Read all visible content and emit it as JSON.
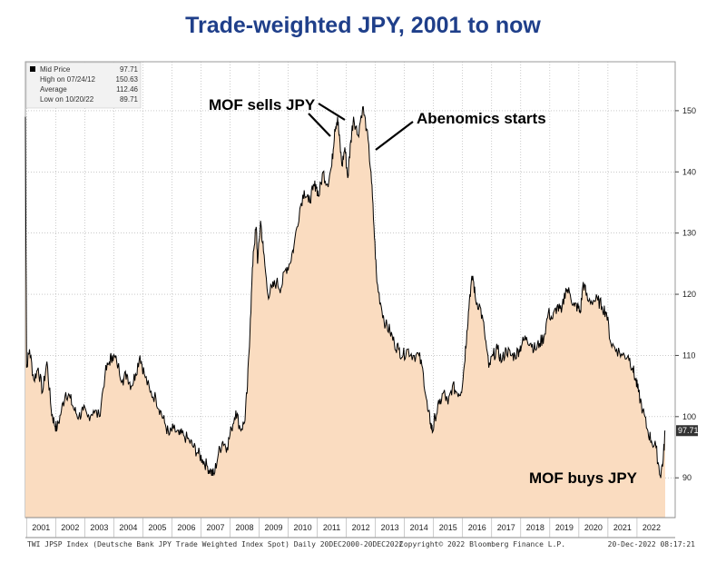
{
  "chart_data": {
    "type": "area",
    "title": "Trade-weighted JPY, 2001 to now",
    "xlabel": "",
    "ylabel": "",
    "x_range": [
      2000.96,
      2022.97
    ],
    "ylim": [
      83.5,
      158
    ],
    "y_ticks": [
      90,
      100,
      110,
      120,
      130,
      140,
      150
    ],
    "x_tick_labels": [
      "2001",
      "2002",
      "2003",
      "2004",
      "2005",
      "2006",
      "2007",
      "2008",
      "2009",
      "2010",
      "2011",
      "2012",
      "2013",
      "2014",
      "2015",
      "2016",
      "2017",
      "2018",
      "2019",
      "2020",
      "2021",
      "2022"
    ],
    "grid": true,
    "series": [
      {
        "name": "Mid Price",
        "points": [
          [
            2000.96,
            149
          ],
          [
            2001.0,
            108
          ],
          [
            2001.1,
            111
          ],
          [
            2001.25,
            106
          ],
          [
            2001.4,
            108
          ],
          [
            2001.55,
            104
          ],
          [
            2001.7,
            109
          ],
          [
            2001.85,
            101
          ],
          [
            2001.95,
            99
          ],
          [
            2002.05,
            98
          ],
          [
            2002.2,
            101
          ],
          [
            2002.35,
            104
          ],
          [
            2002.5,
            103
          ],
          [
            2002.65,
            101
          ],
          [
            2002.8,
            100
          ],
          [
            2002.95,
            101
          ],
          [
            2003.1,
            100
          ],
          [
            2003.3,
            101
          ],
          [
            2003.5,
            100
          ],
          [
            2003.7,
            107
          ],
          [
            2003.85,
            109
          ],
          [
            2003.95,
            110
          ],
          [
            2004.1,
            109
          ],
          [
            2004.3,
            106
          ],
          [
            2004.45,
            107
          ],
          [
            2004.6,
            105
          ],
          [
            2004.75,
            107
          ],
          [
            2004.9,
            110
          ],
          [
            2005.05,
            107
          ],
          [
            2005.25,
            104
          ],
          [
            2005.45,
            103
          ],
          [
            2005.6,
            101
          ],
          [
            2005.75,
            99
          ],
          [
            2005.9,
            97
          ],
          [
            2006.05,
            98
          ],
          [
            2006.25,
            97
          ],
          [
            2006.4,
            97
          ],
          [
            2006.6,
            96
          ],
          [
            2006.75,
            95
          ],
          [
            2006.9,
            94
          ],
          [
            2007.05,
            93
          ],
          [
            2007.2,
            92
          ],
          [
            2007.35,
            91
          ],
          [
            2007.45,
            90.5
          ],
          [
            2007.6,
            94
          ],
          [
            2007.75,
            96
          ],
          [
            2007.9,
            95
          ],
          [
            2008.05,
            98
          ],
          [
            2008.2,
            101
          ],
          [
            2008.35,
            98
          ],
          [
            2008.5,
            99
          ],
          [
            2008.6,
            105
          ],
          [
            2008.7,
            116
          ],
          [
            2008.8,
            127
          ],
          [
            2008.9,
            131
          ],
          [
            2008.95,
            125
          ],
          [
            2009.05,
            132
          ],
          [
            2009.15,
            127
          ],
          [
            2009.3,
            120
          ],
          [
            2009.45,
            121
          ],
          [
            2009.6,
            122
          ],
          [
            2009.75,
            121
          ],
          [
            2009.9,
            124
          ],
          [
            2010.05,
            125
          ],
          [
            2010.2,
            128
          ],
          [
            2010.4,
            134
          ],
          [
            2010.55,
            137
          ],
          [
            2010.7,
            135
          ],
          [
            2010.85,
            137
          ],
          [
            2010.95,
            138
          ],
          [
            2011.05,
            136
          ],
          [
            2011.2,
            140
          ],
          [
            2011.35,
            138
          ],
          [
            2011.5,
            141
          ],
          [
            2011.6,
            147
          ],
          [
            2011.7,
            149
          ],
          [
            2011.75,
            146
          ],
          [
            2011.85,
            141
          ],
          [
            2011.95,
            144
          ],
          [
            2012.05,
            139
          ],
          [
            2012.15,
            145
          ],
          [
            2012.25,
            149
          ],
          [
            2012.4,
            146
          ],
          [
            2012.56,
            150.63
          ],
          [
            2012.7,
            147
          ],
          [
            2012.85,
            140
          ],
          [
            2012.95,
            131
          ],
          [
            2013.05,
            122
          ],
          [
            2013.2,
            118
          ],
          [
            2013.35,
            115
          ],
          [
            2013.5,
            114
          ],
          [
            2013.65,
            112
          ],
          [
            2013.8,
            111
          ],
          [
            2013.95,
            110
          ],
          [
            2014.1,
            111
          ],
          [
            2014.3,
            110
          ],
          [
            2014.5,
            110
          ],
          [
            2014.65,
            107
          ],
          [
            2014.8,
            101
          ],
          [
            2014.9,
            99
          ],
          [
            2014.97,
            97.5
          ],
          [
            2015.05,
            100
          ],
          [
            2015.2,
            102
          ],
          [
            2015.35,
            104
          ],
          [
            2015.5,
            102
          ],
          [
            2015.65,
            105
          ],
          [
            2015.8,
            104
          ],
          [
            2015.95,
            104
          ],
          [
            2016.05,
            108
          ],
          [
            2016.15,
            114
          ],
          [
            2016.25,
            120
          ],
          [
            2016.35,
            123
          ],
          [
            2016.45,
            119
          ],
          [
            2016.6,
            118
          ],
          [
            2016.75,
            114
          ],
          [
            2016.9,
            108
          ],
          [
            2017.05,
            110
          ],
          [
            2017.2,
            111
          ],
          [
            2017.35,
            109
          ],
          [
            2017.5,
            111
          ],
          [
            2017.65,
            110
          ],
          [
            2017.8,
            110
          ],
          [
            2017.95,
            111
          ],
          [
            2018.05,
            112
          ],
          [
            2018.2,
            113
          ],
          [
            2018.35,
            112
          ],
          [
            2018.5,
            111
          ],
          [
            2018.65,
            112
          ],
          [
            2018.8,
            113
          ],
          [
            2018.95,
            117
          ],
          [
            2019.1,
            116
          ],
          [
            2019.25,
            118
          ],
          [
            2019.4,
            117
          ],
          [
            2019.55,
            121
          ],
          [
            2019.7,
            120
          ],
          [
            2019.85,
            118
          ],
          [
            2019.95,
            118
          ],
          [
            2020.05,
            117
          ],
          [
            2020.15,
            122
          ],
          [
            2020.3,
            119
          ],
          [
            2020.5,
            119
          ],
          [
            2020.65,
            119
          ],
          [
            2020.8,
            118
          ],
          [
            2020.95,
            117
          ],
          [
            2021.1,
            112
          ],
          [
            2021.3,
            111
          ],
          [
            2021.5,
            110
          ],
          [
            2021.7,
            110
          ],
          [
            2021.85,
            108
          ],
          [
            2021.95,
            106
          ],
          [
            2022.05,
            104
          ],
          [
            2022.2,
            101
          ],
          [
            2022.35,
            98
          ],
          [
            2022.5,
            96
          ],
          [
            2022.65,
            95
          ],
          [
            2022.8,
            90.3
          ],
          [
            2022.9,
            93
          ],
          [
            2022.97,
            97.71
          ]
        ]
      }
    ],
    "last_value_label": "97.71",
    "legend": {
      "placement": "top-left",
      "items": [
        {
          "label": "Mid Price",
          "value": "97.71"
        },
        {
          "label": "High on 07/24/12",
          "value": "150.63"
        },
        {
          "label": "Average",
          "value": "112.46"
        },
        {
          "label": "Low on 10/20/22",
          "value": "89.71"
        }
      ]
    },
    "annotations": [
      {
        "text": "MOF sells JPY",
        "x": 2011.8,
        "y": 148
      },
      {
        "text": "Abenomics starts",
        "x": 2012.95,
        "y": 142
      },
      {
        "text": "MOF buys JPY",
        "x": 2022.75,
        "y": 91
      }
    ],
    "footer": {
      "left": "TWI JPSP Index (Deutsche Bank JPY Trade Weighted Index Spot)  Daily 20DEC2000-20DEC2022",
      "center": "Copyright© 2022 Bloomberg Finance L.P.",
      "right": "20-Dec-2022 08:17:21"
    },
    "colors": {
      "title": "#1f3f8a",
      "fill": "#fadcc0",
      "line": "#000000",
      "grid": "#aaaaaa",
      "last_value_bg": "#333333"
    }
  }
}
